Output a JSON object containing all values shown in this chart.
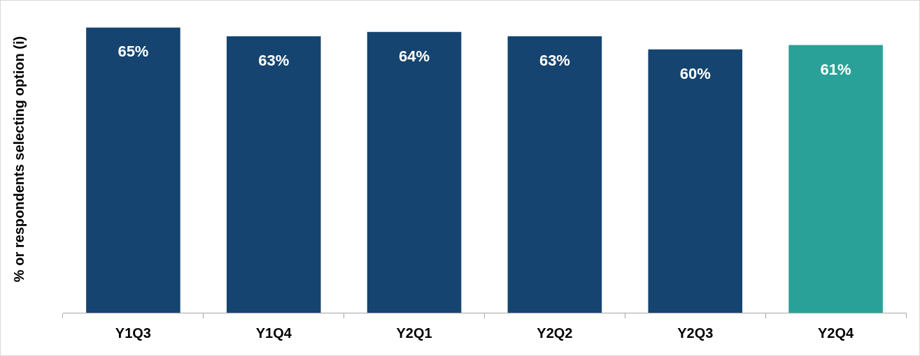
{
  "chart_data": {
    "type": "bar",
    "ylabel": "% or respondents selecting option (i)",
    "categories": [
      "Y1Q3",
      "Y1Q4",
      "Y2Q1",
      "Y2Q2",
      "Y2Q3",
      "Y2Q4"
    ],
    "values": [
      65,
      63,
      64,
      63,
      60,
      61
    ],
    "value_labels": [
      "65%",
      "63%",
      "64%",
      "63%",
      "60%",
      "61%"
    ],
    "colors": [
      "#154470",
      "#154470",
      "#154470",
      "#154470",
      "#154470",
      "#2aa198"
    ],
    "tick_labels": "x",
    "grid": false,
    "legend": false
  }
}
